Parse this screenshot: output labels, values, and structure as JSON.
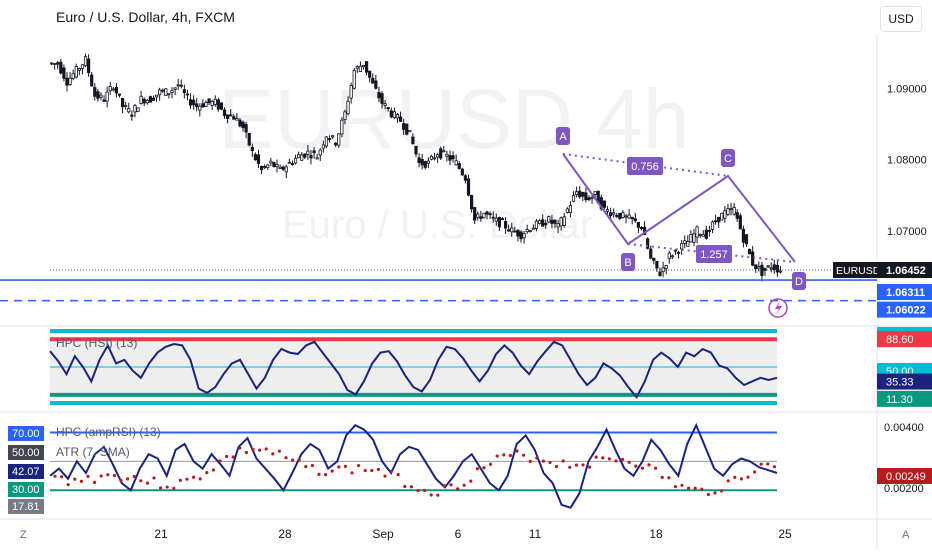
{
  "header": {
    "title": "Euro / U.S. Dollar, 4h, FXCM",
    "currency_button": "USD"
  },
  "watermark": {
    "symbol": "EURUSD  4h",
    "name": "Euro / U.S. Dollar"
  },
  "corner_left": "Z",
  "corner_right": "A",
  "chart_data": [
    {
      "type": "candlestick",
      "title": "Euro / U.S. Dollar, 4h, FXCM",
      "y_ticks": [
        "1.09000",
        "1.08000",
        "1.07000"
      ],
      "ylim": [
        1.0575,
        1.0975
      ],
      "x_ticks": [
        "21",
        "28",
        "Sep",
        "6",
        "11",
        "18",
        "25"
      ],
      "close_path": [
        1.0935,
        1.0935,
        1.091,
        1.0925,
        1.094,
        1.089,
        1.0885,
        1.0905,
        1.0875,
        1.0865,
        1.0885,
        1.0885,
        1.0895,
        1.0895,
        1.0905,
        1.0885,
        1.0875,
        1.088,
        1.088,
        1.0865,
        1.086,
        1.0845,
        1.081,
        1.0785,
        1.0795,
        1.0785,
        1.0795,
        1.0805,
        1.081,
        1.0805,
        1.0835,
        1.0825,
        1.0865,
        1.0925,
        1.0935,
        1.0905,
        1.088,
        1.0865,
        1.0855,
        1.0835,
        1.0795,
        1.0795,
        1.081,
        1.0805,
        1.0795,
        1.0775,
        1.0715,
        1.0725,
        1.0715,
        1.071,
        1.07,
        1.0695,
        1.0705,
        1.071,
        1.0715,
        1.0705,
        1.073,
        1.0755,
        1.0745,
        1.075,
        1.073,
        1.0725,
        1.072,
        1.0715,
        1.0705,
        1.066,
        1.064,
        1.0665,
        1.0675,
        1.0685,
        1.07,
        1.0695,
        1.0715,
        1.0725,
        1.073,
        1.069,
        1.0655,
        1.0642,
        1.0651,
        1.0645
      ],
      "last_price": "1.06452",
      "levels": [
        {
          "label": "EURUSD",
          "value": "1.06452",
          "color": "#131722"
        },
        {
          "value": "1.06311",
          "color": "#2962ff",
          "style": "solid"
        },
        {
          "value": "1.06022",
          "color": "#2962ff",
          "style": "dashed"
        }
      ],
      "pattern": {
        "points": [
          "A",
          "B",
          "C",
          "D"
        ],
        "ratios": [
          "0.756",
          "1.257"
        ],
        "color": "#7e57c2"
      }
    },
    {
      "type": "line",
      "title": "HPC (HSI) (13)",
      "levels": [
        {
          "value": "100.00",
          "color": "#00bcd4"
        },
        {
          "value": "88.60",
          "color": "#f23645"
        },
        {
          "value": "50.00",
          "color": "#00bcd4"
        },
        {
          "value": "11.30",
          "color": "#089981"
        },
        {
          "value": "0.00",
          "color": "#00bcd4"
        }
      ],
      "current": "35.33",
      "series": [
        {
          "values": [
            72,
            58,
            40,
            65,
            50,
            30,
            60,
            80,
            55,
            60,
            45,
            35,
            55,
            70,
            78,
            82,
            80,
            60,
            20,
            14,
            22,
            40,
            55,
            60,
            40,
            20,
            35,
            60,
            75,
            70,
            68,
            80,
            85,
            70,
            55,
            40,
            18,
            12,
            30,
            55,
            70,
            72,
            58,
            38,
            22,
            16,
            32,
            60,
            78,
            75,
            62,
            45,
            30,
            45,
            68,
            80,
            70,
            52,
            40,
            58,
            72,
            85,
            80,
            60,
            40,
            25,
            35,
            55,
            48,
            38,
            22,
            8,
            30,
            60,
            70,
            62,
            50,
            70,
            65,
            75,
            70,
            52,
            48,
            35,
            25,
            30,
            35,
            32,
            35
          ]
        }
      ]
    },
    {
      "type": "line",
      "title": "HPC (ampRSI) (13)",
      "levels": [
        {
          "value": "75.00",
          "color": "#2962ff"
        },
        {
          "value": "70.00",
          "color": "#2962ff"
        },
        {
          "value": "50.00",
          "color": "#9598a1"
        },
        {
          "value": "30.00",
          "color": "#089981"
        }
      ],
      "current": "42.07",
      "left_tags": [
        "70.00",
        "50.00",
        "42.07",
        "30.00",
        "17.81"
      ],
      "series": [
        {
          "values": [
            40,
            45,
            38,
            50,
            42,
            55,
            60,
            48,
            35,
            30,
            45,
            55,
            52,
            40,
            58,
            62,
            50,
            45,
            55,
            48,
            40,
            60,
            66,
            52,
            45,
            38,
            30,
            42,
            55,
            62,
            58,
            45,
            50,
            68,
            75,
            72,
            65,
            50,
            42,
            55,
            60,
            58,
            48,
            38,
            32,
            40,
            50,
            55,
            45,
            35,
            30,
            40,
            62,
            68,
            58,
            42,
            35,
            20,
            18,
            28,
            50,
            60,
            72,
            58,
            45,
            40,
            50,
            65,
            58,
            48,
            40,
            62,
            75,
            60,
            45,
            40,
            48,
            52,
            50,
            46,
            44,
            42
          ]
        }
      ]
    },
    {
      "type": "scatter",
      "title": "ATR (7, SMA)",
      "y_ticks": [
        "0.00400",
        "0.00200"
      ],
      "current": "0.00249",
      "color": "#b71c1c"
    }
  ]
}
